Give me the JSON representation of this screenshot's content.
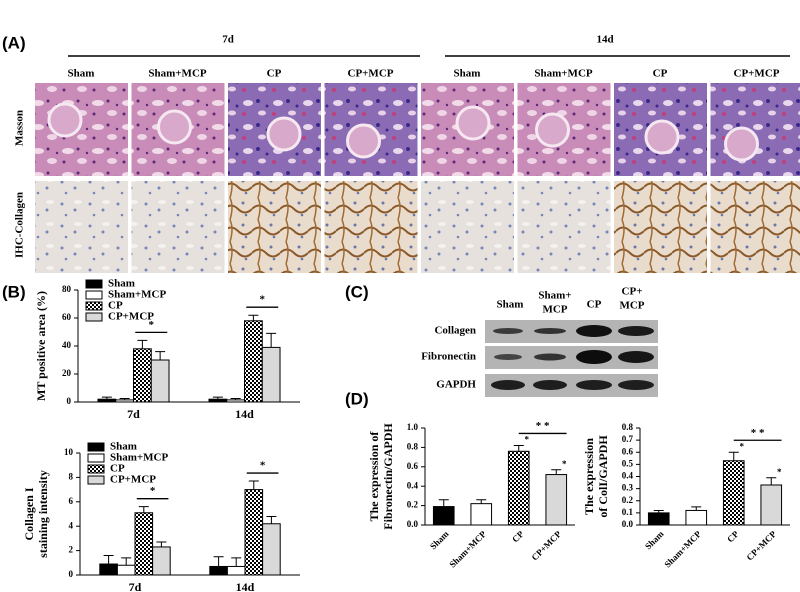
{
  "panels": {
    "a": "(A)",
    "b": "(B)",
    "c": "(C)",
    "d": "(D)"
  },
  "micrographs": {
    "timepoints": [
      "7d",
      "14d"
    ],
    "groups": [
      "Sham",
      "Sham+MCP",
      "CP",
      "CP+MCP",
      "Sham",
      "Sham+MCP",
      "CP",
      "CP+MCP"
    ],
    "rows": [
      "Masson",
      "IHC-Collagen"
    ]
  },
  "western_blot": {
    "lanes": [
      [
        "Sham"
      ],
      [
        "Sham+",
        "MCP"
      ],
      [
        "CP"
      ],
      [
        "CP+",
        "MCP"
      ]
    ],
    "bands": [
      "Collagen",
      "Fibronectin",
      "GAPDH"
    ]
  },
  "chart_data": [
    {
      "type": "bar",
      "y_label": [
        "MT positive area (%)"
      ],
      "categories": [
        "7d",
        "14d"
      ],
      "series": [
        {
          "name": "Sham",
          "color": "#000000",
          "values": [
            2,
            2
          ],
          "errors": [
            1.5,
            1.5
          ]
        },
        {
          "name": "Sham+MCP",
          "color": "#ffffff",
          "values": [
            1.5,
            1.5
          ],
          "errors": [
            1,
            1
          ]
        },
        {
          "name": "CP",
          "color": "checker",
          "values": [
            38,
            58
          ],
          "errors": [
            6,
            4
          ]
        },
        {
          "name": "CP+MCP",
          "color": "#d9d9d9",
          "values": [
            30,
            39
          ],
          "errors": [
            6,
            10
          ]
        }
      ],
      "ylim": [
        0,
        80
      ],
      "yticks": [
        0,
        20,
        40,
        60,
        80
      ],
      "legend": "top-left",
      "annotations": [
        "*",
        "*"
      ]
    },
    {
      "type": "bar",
      "y_label": [
        "Collagen I",
        "staining intensity"
      ],
      "categories": [
        "7d",
        "14d"
      ],
      "series": [
        {
          "name": "Sham",
          "color": "#000000",
          "values": [
            0.9,
            0.7
          ],
          "errors": [
            0.7,
            0.8
          ]
        },
        {
          "name": "Sham+MCP",
          "color": "#ffffff",
          "values": [
            0.8,
            0.7
          ],
          "errors": [
            0.6,
            0.7
          ]
        },
        {
          "name": "CP",
          "color": "checker",
          "values": [
            5.1,
            7.0
          ],
          "errors": [
            0.5,
            0.7
          ]
        },
        {
          "name": "CP+MCP",
          "color": "#d9d9d9",
          "values": [
            2.3,
            4.2
          ],
          "errors": [
            0.4,
            0.6
          ]
        }
      ],
      "ylim": [
        0,
        10
      ],
      "yticks": [
        0,
        2,
        4,
        6,
        8,
        10
      ],
      "legend": "top-left",
      "annotations": [
        "*",
        "*"
      ]
    },
    {
      "type": "bar",
      "y_label": [
        "The expression of",
        "Fibronectin/GAPDH"
      ],
      "categories": [
        "Sham",
        "Sham+MCP",
        "CP",
        "CP+MCP"
      ],
      "values": [
        0.19,
        0.22,
        0.76,
        0.52
      ],
      "errors": [
        0.07,
        0.04,
        0.06,
        0.05
      ],
      "colors": [
        "#000000",
        "#ffffff",
        "checker",
        "#d9d9d9"
      ],
      "ylim": [
        0,
        1.0
      ],
      "yticks": [
        {
          "value": 0,
          "label": "0.0"
        },
        0.2,
        0.4,
        0.6,
        0.8,
        {
          "value": 1,
          "label": "1.0"
        }
      ],
      "annotations": [
        "*",
        "*",
        "* *"
      ]
    },
    {
      "type": "bar",
      "y_label": [
        "The expression",
        "of ColI/GAPDH"
      ],
      "categories": [
        "Sham",
        "Sham+MCP",
        "CP",
        "CP+MCP"
      ],
      "values": [
        0.1,
        0.12,
        0.53,
        0.33
      ],
      "errors": [
        0.02,
        0.03,
        0.07,
        0.06
      ],
      "colors": [
        "#000000",
        "#ffffff",
        "checker",
        "#d9d9d9"
      ],
      "ylim": [
        0,
        0.8
      ],
      "yticks": [
        {
          "value": 0,
          "label": "0.0"
        },
        0.1,
        0.2,
        0.3,
        0.4,
        0.5,
        0.6,
        0.7,
        0.8
      ],
      "annotations": [
        "*",
        "*",
        "* *"
      ]
    }
  ]
}
